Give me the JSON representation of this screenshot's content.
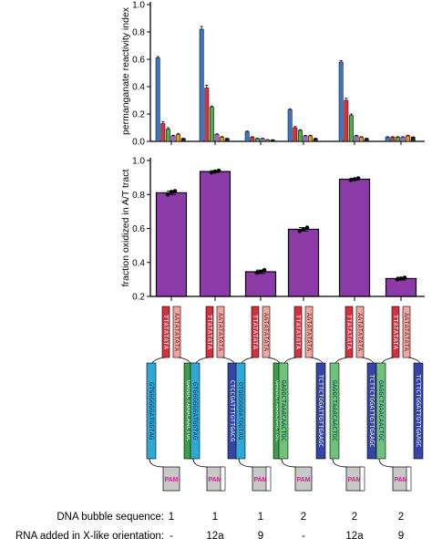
{
  "chart_data": [
    {
      "type": "bar",
      "ylabel": "permanganate reactivity index",
      "ylim": [
        0,
        1.0
      ],
      "yticks": [
        "0.0",
        "0.2",
        "0.4",
        "0.6",
        "0.8",
        "1.0"
      ],
      "series_colors": [
        "#3d74c4",
        "#d8333a",
        "#4fb04a",
        "#a06bc8",
        "#f08f2a",
        "#222222"
      ],
      "groups": [
        {
          "values": [
            0.61,
            0.13,
            0.09,
            0.04,
            0.05,
            0.02
          ],
          "errors": [
            0.01,
            0.015,
            0.01,
            0.005,
            0.008,
            0.003
          ]
        },
        {
          "values": [
            0.82,
            0.39,
            0.25,
            0.05,
            0.03,
            0.02
          ],
          "errors": [
            0.02,
            0.02,
            0.008,
            0.005,
            0.005,
            0.003
          ]
        },
        {
          "values": [
            0.07,
            0.03,
            0.02,
            0.02,
            0.01,
            0.01
          ],
          "errors": [
            0.005,
            0.004,
            0.003,
            0.003,
            0.003,
            0.002
          ]
        },
        {
          "values": [
            0.23,
            0.1,
            0.08,
            0.04,
            0.04,
            0.02
          ],
          "errors": [
            0.008,
            0.008,
            0.005,
            0.004,
            0.005,
            0.003
          ]
        },
        {
          "values": [
            0.58,
            0.3,
            0.19,
            0.04,
            0.03,
            0.02
          ],
          "errors": [
            0.01,
            0.015,
            0.01,
            0.004,
            0.004,
            0.003
          ]
        },
        {
          "values": [
            0.03,
            0.03,
            0.03,
            0.03,
            0.04,
            0.03
          ],
          "errors": [
            0.004,
            0.004,
            0.004,
            0.004,
            0.005,
            0.003
          ]
        }
      ]
    },
    {
      "type": "bar",
      "ylabel": "fraction oxidized in A/T tract",
      "ylim": [
        0.2,
        1.0
      ],
      "yticks": [
        "0.2",
        "0.4",
        "0.6",
        "0.8",
        "1.0"
      ],
      "color": "#8c3aa8",
      "values": [
        0.81,
        0.935,
        0.345,
        0.595,
        0.89,
        0.305
      ],
      "errors": [
        0.01,
        0.005,
        0.01,
        0.01,
        0.005,
        0.008
      ],
      "points": [
        [
          0.8,
          0.815,
          0.82
        ],
        [
          0.93,
          0.935,
          0.94
        ],
        [
          0.34,
          0.345,
          0.355
        ],
        [
          0.585,
          0.595,
          0.605
        ],
        [
          0.885,
          0.89,
          0.895
        ],
        [
          0.3,
          0.305,
          0.31
        ]
      ]
    }
  ],
  "diagrams": [
    {
      "strand1": "TTATATATA",
      "strand2": "AATATATATA",
      "left": "GTGGGGGGATGGTAG",
      "left_color": "#2fa8d6",
      "right": "GAGGCTAAACAACTGC",
      "right_color": "#3c9d4a",
      "pam": "PAM",
      "right_pam": false
    },
    {
      "strand1": "TTATATATA",
      "strand2": "AATATATATA",
      "left": "GTGGGGGGATGGTAG",
      "left_color": "#2fa8d6",
      "right": "CTCCGATTTGTTGACG",
      "right_color": "#3346a8",
      "pam": "PAM",
      "right_pam": true
    },
    {
      "strand1": "TTATATATA",
      "strand2": "AATATATATA",
      "left": "GTGGGGGGATGGTAG",
      "left_color": "#2fa8d6",
      "right": "GAGGCTAAACAACTGC",
      "right_color": "#3c9d4a",
      "pam": "PAM",
      "right_pam": true
    },
    {
      "strand1": "TTATATATA",
      "strand2": "AATATATATA",
      "left": "GAGGCTAAACAACTGC",
      "left_color": "#6ec27a",
      "right": "TCTTCTGGATTGTTGAAGC",
      "right_color": "#3346a8",
      "pam": "PAM",
      "right_pam": false
    },
    {
      "strand1": "TTATATATA",
      "strand2": "AATATATATA",
      "left": "GAGGCTAAACAACTGC",
      "left_color": "#6ec27a",
      "right": "TCTTCTGGATTGTTGAAGC",
      "right_color": "#3346a8",
      "pam": "PAM",
      "right_pam": true
    },
    {
      "strand1": "TTATATATA",
      "strand2": "AATATATATA",
      "left": "GAGGCTAAACAACTGC",
      "left_color": "#6ec27a",
      "right": "TCTTCTGGATTGTTGAAGC",
      "right_color": "#3346a8",
      "pam": "PAM",
      "right_pam": true
    }
  ],
  "table": {
    "rows": [
      {
        "label": "DNA bubble sequence:",
        "values": [
          "1",
          "1",
          "1",
          "2",
          "2",
          "2"
        ]
      },
      {
        "label": "RNA added in X-like orientation:",
        "values": [
          "-",
          "12a",
          "9",
          "-",
          "12a",
          "9"
        ]
      }
    ]
  },
  "colors": {
    "strand1": "#d6303f",
    "strand2": "#eea6a0",
    "pam_fill": "#c8c8c8"
  }
}
